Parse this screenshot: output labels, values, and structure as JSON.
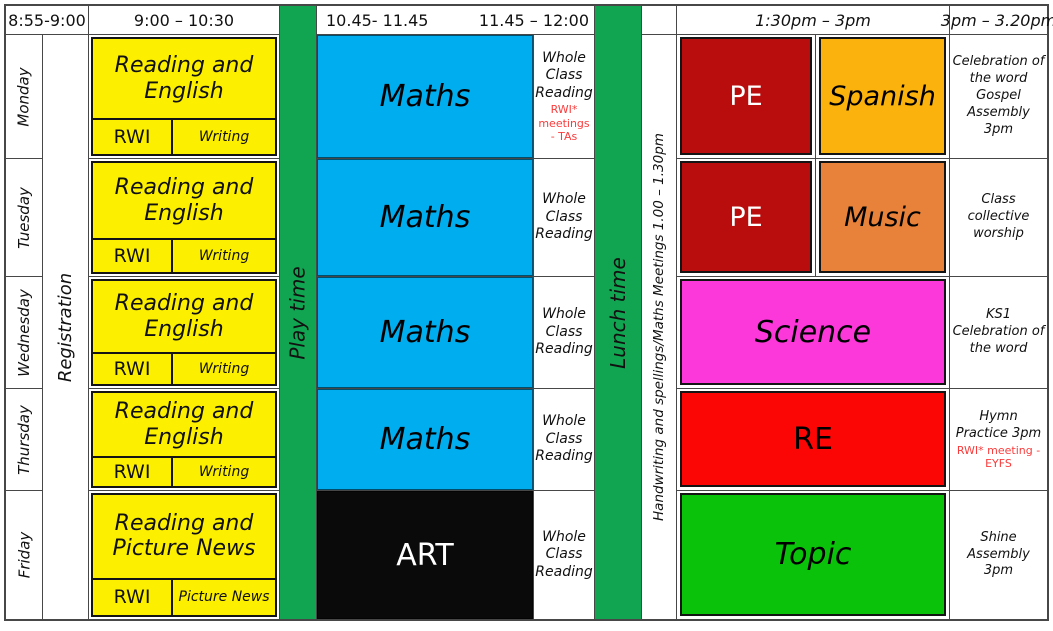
{
  "header": {
    "slot_registration": "8:55-9:00",
    "slot_morning": "9:00 – 10:30",
    "slot_maths": "10.45- 11.45",
    "slot_wcr": "11.45 – 12:00",
    "slot_afternoon": "1:30pm – 3pm",
    "slot_end": "3pm – 3.20pm"
  },
  "bars": {
    "registration": "Registration",
    "play": "Play time",
    "lunch": "Lunch time",
    "handwriting": "Handwriting and spellings/Maths Meetings 1.00 – 1.30pm"
  },
  "colors": {
    "yellow": "#fcef00",
    "bar_green": "#12a551",
    "blue": "#00aeef",
    "black": "#0a0a0a",
    "dark_red": "#b90d0d",
    "gold": "#fbb20d",
    "orange": "#e8823a",
    "magenta": "#fc38db",
    "red": "#fb0505",
    "bright_green": "#0ac20a",
    "note_red": "#fb3b3b",
    "grid_line": "#474747"
  },
  "rows": [
    {
      "day": "Monday",
      "morning": {
        "title": "Reading and English",
        "sub_left": "RWI",
        "sub_right": "Writing",
        "color": "yellow"
      },
      "midday": {
        "label": "Maths",
        "color": "blue",
        "text_color": "#000000"
      },
      "wcr": {
        "text": "Whole Class Reading",
        "note": "RWI* meetings - TAs"
      },
      "afternoon": [
        {
          "label": "PE",
          "color": "dark_red",
          "text_color": "#ffffff"
        },
        {
          "label": "Spanish",
          "color": "gold",
          "text_color": "#000000"
        }
      ],
      "end": {
        "text": "Celebration of the word Gospel Assembly 3pm"
      }
    },
    {
      "day": "Tuesday",
      "morning": {
        "title": "Reading and English",
        "sub_left": "RWI",
        "sub_right": "Writing",
        "color": "yellow"
      },
      "midday": {
        "label": "Maths",
        "color": "blue",
        "text_color": "#000000"
      },
      "wcr": {
        "text": "Whole Class Reading"
      },
      "afternoon": [
        {
          "label": "PE",
          "color": "dark_red",
          "text_color": "#ffffff"
        },
        {
          "label": "Music",
          "color": "orange",
          "text_color": "#000000"
        }
      ],
      "end": {
        "text": "Class collective worship"
      }
    },
    {
      "day": "Wednesday",
      "morning": {
        "title": "Reading and English",
        "sub_left": "RWI",
        "sub_right": "Writing",
        "color": "yellow"
      },
      "midday": {
        "label": "Maths",
        "color": "blue",
        "text_color": "#000000"
      },
      "wcr": {
        "text": "Whole Class Reading"
      },
      "afternoon": [
        {
          "label": "Science",
          "color": "magenta",
          "text_color": "#000000"
        }
      ],
      "end": {
        "text": "KS1 Celebration of the word"
      }
    },
    {
      "day": "Thursday",
      "morning": {
        "title": "Reading and English",
        "sub_left": "RWI",
        "sub_right": "Writing",
        "color": "yellow"
      },
      "midday": {
        "label": "Maths",
        "color": "blue",
        "text_color": "#000000"
      },
      "wcr": {
        "text": "Whole Class Reading"
      },
      "afternoon": [
        {
          "label": "RE",
          "color": "red",
          "text_color": "#000000"
        }
      ],
      "end": {
        "text": "Hymn Practice 3pm",
        "note": "RWI* meeting - EYFS"
      }
    },
    {
      "day": "Friday",
      "morning": {
        "title": "Reading and Picture News",
        "sub_left": "RWI",
        "sub_right": "Picture News",
        "color": "yellow"
      },
      "midday": {
        "label": "ART",
        "color": "black",
        "text_color": "#ffffff"
      },
      "wcr": {
        "text": "Whole Class Reading"
      },
      "afternoon": [
        {
          "label": "Topic",
          "color": "bright_green",
          "text_color": "#000000"
        }
      ],
      "end": {
        "text": "Shine Assembly 3pm"
      }
    }
  ]
}
